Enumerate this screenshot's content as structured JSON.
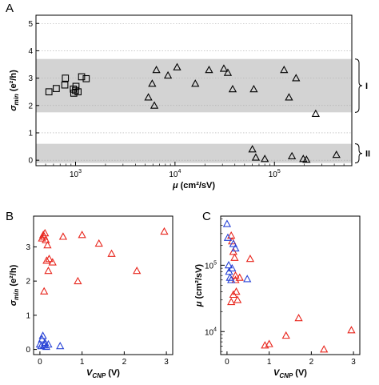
{
  "chart_data": [
    {
      "panel": "A",
      "type": "scatter",
      "ylabel": "σmin (e²/h)",
      "ylabel_parts": {
        "sym": "σ",
        "sub": "min",
        "rest": " (e²/h)"
      },
      "xlabel": "μ (cm²/sV)",
      "xlabel_parts": {
        "sym": "μ",
        "rest": " (cm²/sV)"
      },
      "xscale": "log",
      "xlim": [
        400,
        600000
      ],
      "ylim": [
        -0.2,
        5.3
      ],
      "yticks": [
        "0",
        "1",
        "2",
        "3",
        "4",
        "5"
      ],
      "xticks": [
        {
          "value": 1000,
          "base": "10",
          "exp": "3"
        },
        {
          "value": 10000,
          "base": "10",
          "exp": "4"
        },
        {
          "value": 100000,
          "base": "10",
          "exp": "5"
        }
      ],
      "grid": true,
      "bands": [
        {
          "from": 1.75,
          "to": 3.7,
          "label": "I"
        },
        {
          "from": -0.1,
          "to": 0.6,
          "label": "II"
        }
      ],
      "series": [
        {
          "marker": "square",
          "color": "#000000",
          "x": [
            540,
            640,
            780,
            790,
            950,
            960,
            1010,
            1060,
            1150,
            1280,
            1000
          ],
          "y": [
            2.5,
            2.62,
            2.75,
            3.0,
            2.6,
            2.45,
            2.7,
            2.5,
            3.05,
            2.98,
            2.55
          ]
        },
        {
          "marker": "triangle",
          "color": "#000000",
          "x": [
            5400,
            5900,
            6200,
            6500,
            8500,
            10500,
            16000,
            22000,
            31000,
            34000,
            38000,
            62000,
            125000,
            140000,
            165000,
            260000,
            60000,
            65000,
            80000,
            150000,
            195000,
            210000,
            420000
          ],
          "y": [
            2.3,
            2.8,
            2.0,
            3.3,
            3.1,
            3.4,
            2.8,
            3.3,
            3.35,
            3.2,
            2.6,
            2.6,
            3.3,
            2.3,
            3.0,
            1.7,
            0.4,
            0.1,
            0.05,
            0.15,
            0.05,
            0.02,
            0.2
          ]
        }
      ]
    },
    {
      "panel": "B",
      "type": "scatter",
      "ylabel": "σmin (e²/h)",
      "ylabel_parts": {
        "sym": "σ",
        "sub": "min",
        "rest": " (e²/h)"
      },
      "xlabel": "VCNP (V)",
      "xlabel_parts": {
        "sym": "V",
        "sub": "CNP",
        "rest": " (V)"
      },
      "xlim": [
        -0.15,
        3.15
      ],
      "ylim": [
        -0.15,
        3.9
      ],
      "xticks": [
        "0",
        "1",
        "2",
        "3"
      ],
      "yticks": [
        "0",
        "1",
        "2",
        "3"
      ],
      "series": [
        {
          "marker": "triangle",
          "color": "#e8251c",
          "x": [
            0.05,
            0.08,
            0.1,
            0.12,
            0.14,
            0.16,
            0.18,
            0.2,
            0.22,
            0.3,
            0.55,
            0.9,
            1.0,
            1.4,
            1.7,
            2.3,
            2.95,
            0.1
          ],
          "y": [
            3.25,
            3.35,
            3.3,
            3.4,
            3.2,
            2.6,
            3.05,
            2.3,
            2.65,
            2.55,
            3.3,
            2.0,
            3.35,
            3.1,
            2.8,
            2.3,
            3.45,
            1.7
          ]
        },
        {
          "marker": "triangle",
          "color": "#2742d6",
          "x": [
            0.0,
            0.03,
            0.05,
            0.07,
            0.1,
            0.12,
            0.15,
            0.2,
            0.48
          ],
          "y": [
            0.15,
            0.1,
            0.3,
            0.4,
            0.12,
            0.2,
            0.08,
            0.15,
            0.1
          ]
        }
      ]
    },
    {
      "panel": "C",
      "type": "scatter",
      "ylabel": "μ (cm²/sV)",
      "ylabel_parts": {
        "sym": "μ",
        "rest": " (cm²/sV)"
      },
      "xlabel": "VCNP (V)",
      "xlabel_parts": {
        "sym": "V",
        "sub": "CNP",
        "rest": " (V)"
      },
      "xlim": [
        -0.15,
        3.15
      ],
      "yscale": "log",
      "ylim": [
        4500,
        550000
      ],
      "xticks": [
        "0",
        "1",
        "2",
        "3"
      ],
      "yticks": [
        {
          "value": 10000,
          "base": "10",
          "exp": "4"
        },
        {
          "value": 100000,
          "base": "10",
          "exp": "5"
        }
      ],
      "series": [
        {
          "marker": "triangle",
          "color": "#e8251c",
          "x": [
            0.1,
            0.12,
            0.15,
            0.18,
            0.2,
            0.22,
            0.25,
            0.3,
            0.55,
            0.9,
            1.0,
            1.4,
            1.7,
            2.3,
            2.95,
            0.1,
            0.15,
            0.2
          ],
          "y": [
            280000,
            230000,
            160000,
            130000,
            70000,
            40000,
            30000,
            65000,
            125000,
            6200,
            6500,
            8700,
            16000,
            5400,
            10500,
            28000,
            36000,
            60000
          ]
        },
        {
          "marker": "triangle",
          "color": "#2742d6",
          "x": [
            0.0,
            0.02,
            0.04,
            0.05,
            0.07,
            0.1,
            0.12,
            0.15,
            0.2,
            0.48
          ],
          "y": [
            420000,
            260000,
            100000,
            80000,
            65000,
            60000,
            90000,
            210000,
            180000,
            62000
          ]
        }
      ]
    }
  ]
}
